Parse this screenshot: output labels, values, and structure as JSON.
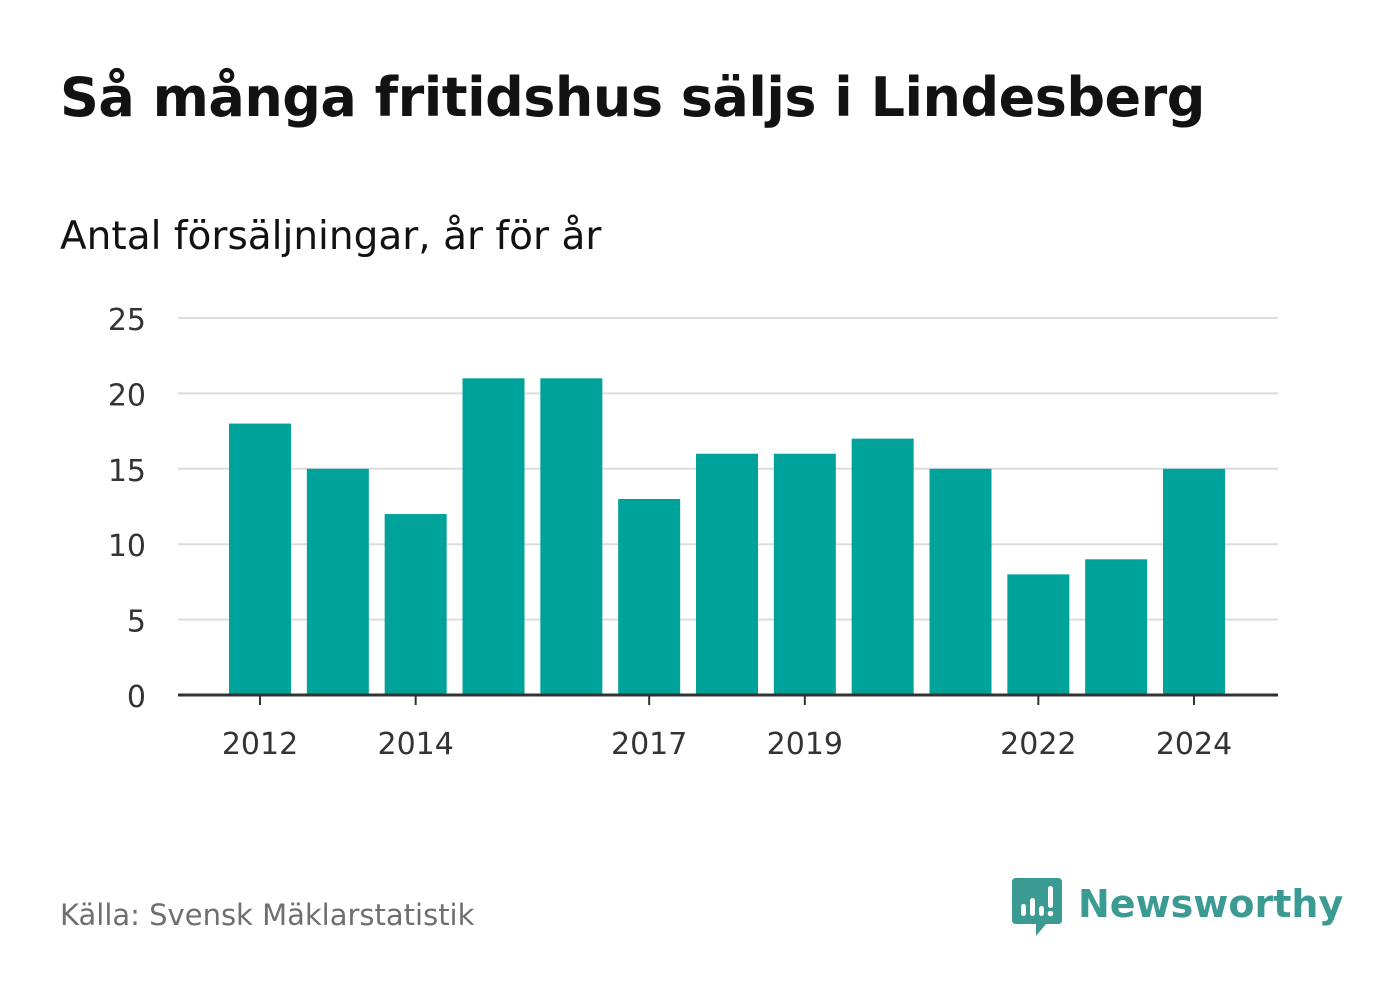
{
  "header": {
    "title": "Så många fritidshus säljs i Lindesberg",
    "subtitle": "Antal försäljningar, år för år"
  },
  "footer": {
    "source": "Källa: Svensk Mäklarstatistik",
    "brand": "Newsworthy",
    "brand_icon": "bar-chart-speech-bubble-icon"
  },
  "colors": {
    "bar": "#00a39a",
    "grid": "#dddddd",
    "axis": "#333333",
    "brand": "#3b9a92"
  },
  "chart_data": {
    "type": "bar",
    "categories": [
      "2012",
      "2013",
      "2014",
      "2015",
      "2016",
      "2017",
      "2018",
      "2019",
      "2020",
      "2021",
      "2022",
      "2023",
      "2024"
    ],
    "values": [
      18,
      15,
      12,
      21,
      21,
      13,
      16,
      16,
      17,
      15,
      8,
      9,
      15
    ],
    "x_tick_labels": [
      "2012",
      "2014",
      "2017",
      "2019",
      "2022",
      "2024"
    ],
    "y_ticks": [
      0,
      5,
      10,
      15,
      20,
      25
    ],
    "ylim": [
      0,
      25
    ],
    "grid": true,
    "legend": "none"
  }
}
